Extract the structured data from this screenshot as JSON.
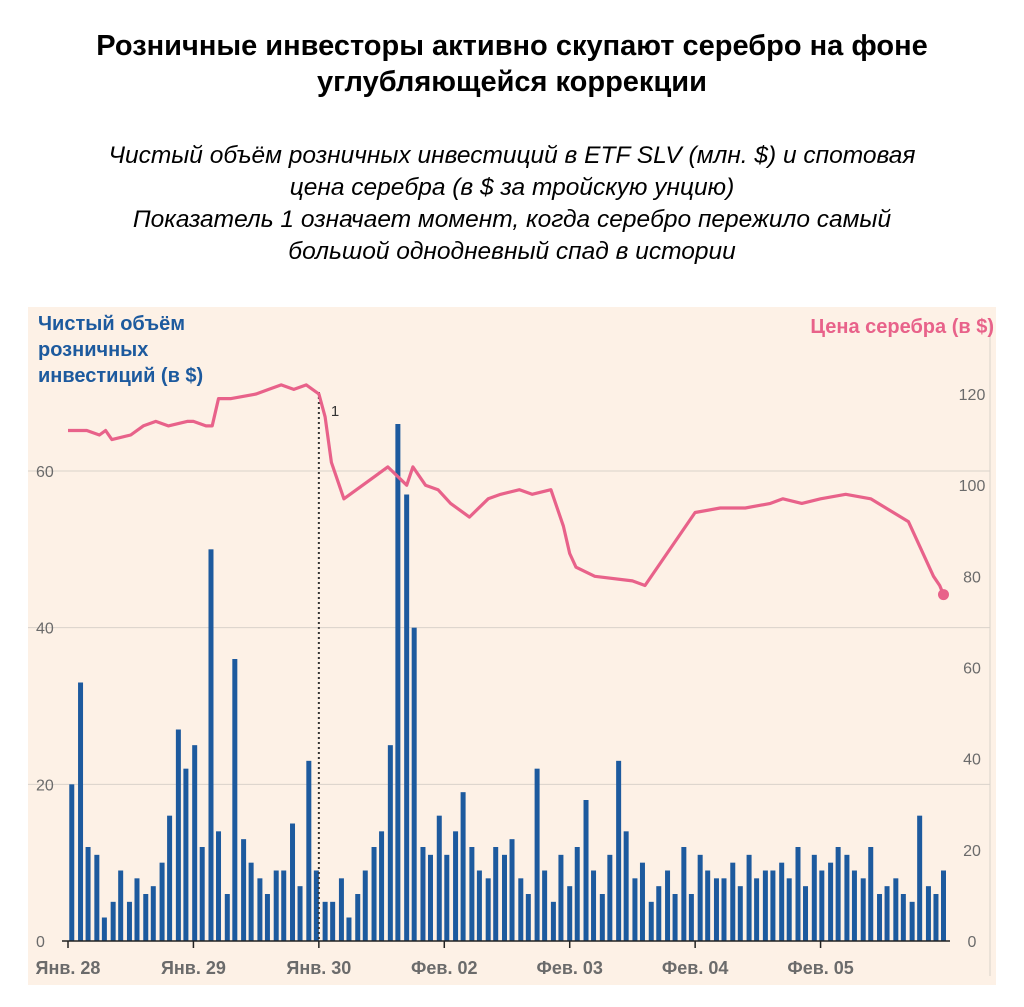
{
  "title": "Розничные инвесторы активно скупают серебро на фоне углубляющейся коррекции",
  "subtitle_lines": [
    "Чистый объём розничных инвестиций в ETF SLV (млн. $) и спотовая",
    "цена серебра (в $ за тройскую унцию)",
    "Показатель 1 означает момент, когда серебро пережило самый",
    "большой однодневный спад в истории"
  ],
  "colors": {
    "bars": "#1d5a9e",
    "price_line": "#e8628a",
    "left_label": "#1d5a9e",
    "right_label": "#e8628a",
    "panel_bg": "#fdf1e6",
    "grid": "#d9d2cb",
    "axis_text": "#6b6b6b"
  },
  "chart_data": {
    "type": "bar+line",
    "left_axis_label_lines": [
      "Чистый объём",
      "розничных",
      "инвестиций (в $)"
    ],
    "right_axis_label": "Цена серебра (в $)",
    "left_ticks": [
      0,
      20,
      40,
      60
    ],
    "right_ticks": [
      0,
      20,
      40,
      60,
      80,
      100,
      120
    ],
    "left_ylim": [
      0,
      70
    ],
    "right_ylim": [
      0,
      120
    ],
    "x_labels": [
      "Янв. 28",
      "Янв. 29",
      "Янв. 30",
      "Фев. 02",
      "Фев. 03",
      "Фев. 04",
      "Фев. 05"
    ],
    "x_range": [
      0,
      7
    ],
    "annotation": {
      "label": "1",
      "x": 2.0
    },
    "grid": true,
    "bars": {
      "name": "Чистый объём розничных инвестиций",
      "x": [
        0.03,
        0.1,
        0.16,
        0.23,
        0.29,
        0.36,
        0.42,
        0.49,
        0.55,
        0.62,
        0.68,
        0.75,
        0.81,
        0.88,
        0.94,
        1.01,
        1.07,
        1.14,
        1.2,
        1.27,
        1.33,
        1.4,
        1.46,
        1.53,
        1.59,
        1.66,
        1.72,
        1.79,
        1.85,
        1.92,
        1.98,
        2.05,
        2.11,
        2.18,
        2.24,
        2.31,
        2.37,
        2.44,
        2.5,
        2.57,
        2.63,
        2.7,
        2.76,
        2.83,
        2.89,
        2.96,
        3.02,
        3.09,
        3.15,
        3.22,
        3.28,
        3.35,
        3.41,
        3.48,
        3.54,
        3.61,
        3.67,
        3.74,
        3.8,
        3.87,
        3.93,
        4.0,
        4.06,
        4.13,
        4.19,
        4.26,
        4.32,
        4.39,
        4.45,
        4.52,
        4.58,
        4.65,
        4.71,
        4.78,
        4.84,
        4.91,
        4.97,
        5.04,
        5.1,
        5.17,
        5.23,
        5.3,
        5.36,
        5.43,
        5.49,
        5.56,
        5.62,
        5.69,
        5.75,
        5.82,
        5.88,
        5.95,
        6.01,
        6.08,
        6.14,
        6.21,
        6.27,
        6.34,
        6.4,
        6.47,
        6.53,
        6.6,
        6.66,
        6.73,
        6.79,
        6.86,
        6.92,
        6.98
      ],
      "values": [
        20,
        33,
        12,
        11,
        3,
        5,
        9,
        5,
        8,
        6,
        7,
        10,
        16,
        27,
        22,
        25,
        12,
        50,
        14,
        6,
        36,
        13,
        10,
        8,
        6,
        9,
        9,
        15,
        7,
        23,
        9,
        5,
        5,
        8,
        3,
        6,
        9,
        12,
        14,
        25,
        66,
        57,
        40,
        12,
        11,
        16,
        11,
        14,
        19,
        12,
        9,
        8,
        12,
        11,
        13,
        8,
        6,
        22,
        9,
        5,
        11,
        7,
        12,
        18,
        9,
        6,
        11,
        23,
        14,
        8,
        10,
        5,
        7,
        9,
        6,
        12,
        6,
        11,
        9,
        8,
        8,
        10,
        7,
        11,
        8,
        9,
        9,
        10,
        8,
        12,
        7,
        11,
        9,
        10,
        12,
        11,
        9,
        8,
        12,
        6,
        7,
        8,
        6,
        5,
        16,
        7,
        6,
        9
      ]
    },
    "series": [
      {
        "name": "Цена серебра",
        "x": [
          0.0,
          0.15,
          0.25,
          0.3,
          0.35,
          0.5,
          0.6,
          0.7,
          0.8,
          0.95,
          1.0,
          1.1,
          1.15,
          1.2,
          1.3,
          1.5,
          1.6,
          1.7,
          1.8,
          1.9,
          2.0,
          2.05,
          2.1,
          2.2,
          2.3,
          2.45,
          2.55,
          2.7,
          2.75,
          2.85,
          2.95,
          3.05,
          3.2,
          3.35,
          3.45,
          3.6,
          3.7,
          3.85,
          3.95,
          4.0,
          4.05,
          4.2,
          4.5,
          4.6,
          5.0,
          5.2,
          5.4,
          5.6,
          5.7,
          5.85,
          6.0,
          6.2,
          6.4,
          6.7,
          6.9,
          6.95,
          6.98
        ],
        "values": [
          112,
          112,
          111,
          112,
          110,
          111,
          113,
          114,
          113,
          114,
          114,
          113,
          113,
          119,
          119,
          120,
          121,
          122,
          121,
          122,
          120,
          115,
          105,
          97,
          99,
          102,
          104,
          100,
          104,
          100,
          99,
          96,
          93,
          97,
          98,
          99,
          98,
          99,
          91,
          85,
          82,
          80,
          79,
          78,
          94,
          95,
          95,
          96,
          97,
          96,
          97,
          98,
          97,
          92,
          80,
          78,
          76
        ]
      }
    ]
  }
}
